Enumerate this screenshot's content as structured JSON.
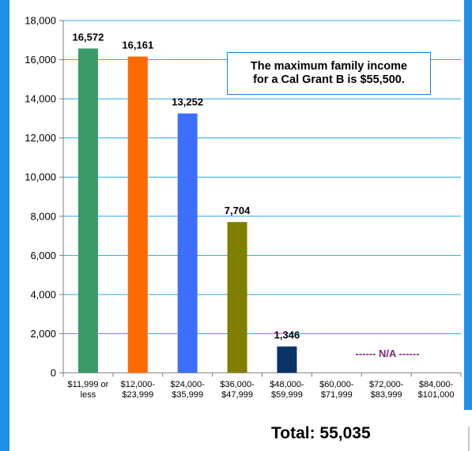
{
  "colors": {
    "frame": "#1e90e8",
    "grid": "#29a8e8",
    "axis": "#7f7f7f",
    "na_text": "#7a2a7a",
    "callout_border": "#1f7fd6"
  },
  "callout": {
    "line1": "The maximum family income",
    "line2": "for a Cal Grant  B is $55,500."
  },
  "total_label": "Total:  55,035",
  "na_label": "------ N/A ------",
  "chart_data": {
    "type": "bar",
    "title": "",
    "xlabel": "",
    "ylabel": "",
    "ylim": [
      0,
      18000
    ],
    "yticks": [
      0,
      2000,
      4000,
      6000,
      8000,
      10000,
      12000,
      14000,
      16000,
      18000
    ],
    "ytick_labels": [
      "0",
      "2,000",
      "4,000",
      "6,000",
      "8,000",
      "10,000",
      "12,000",
      "14,000",
      "16,000",
      "18,000"
    ],
    "grid": true,
    "categories": [
      [
        "$11,999 or",
        "less"
      ],
      [
        "$12,000-",
        "$23,999"
      ],
      [
        "$24,000-",
        "$35,999"
      ],
      [
        "$36,000-",
        "$47,999"
      ],
      [
        "$48,000-",
        "$59,999"
      ],
      [
        "$60,000-",
        "$71,999"
      ],
      [
        "$72,000-",
        "$83,999"
      ],
      [
        "$84,000-",
        "$101,000"
      ]
    ],
    "values": [
      16572,
      16161,
      13252,
      7704,
      1346,
      null,
      null,
      null
    ],
    "data_labels": [
      "16,572",
      "16,161",
      "13,252",
      "7,704",
      "1,346",
      "",
      "",
      ""
    ],
    "bar_colors": [
      "#3a9a6a",
      "#ff6a00",
      "#3d6fff",
      "#808000",
      "#0a3366",
      "",
      "",
      ""
    ]
  }
}
